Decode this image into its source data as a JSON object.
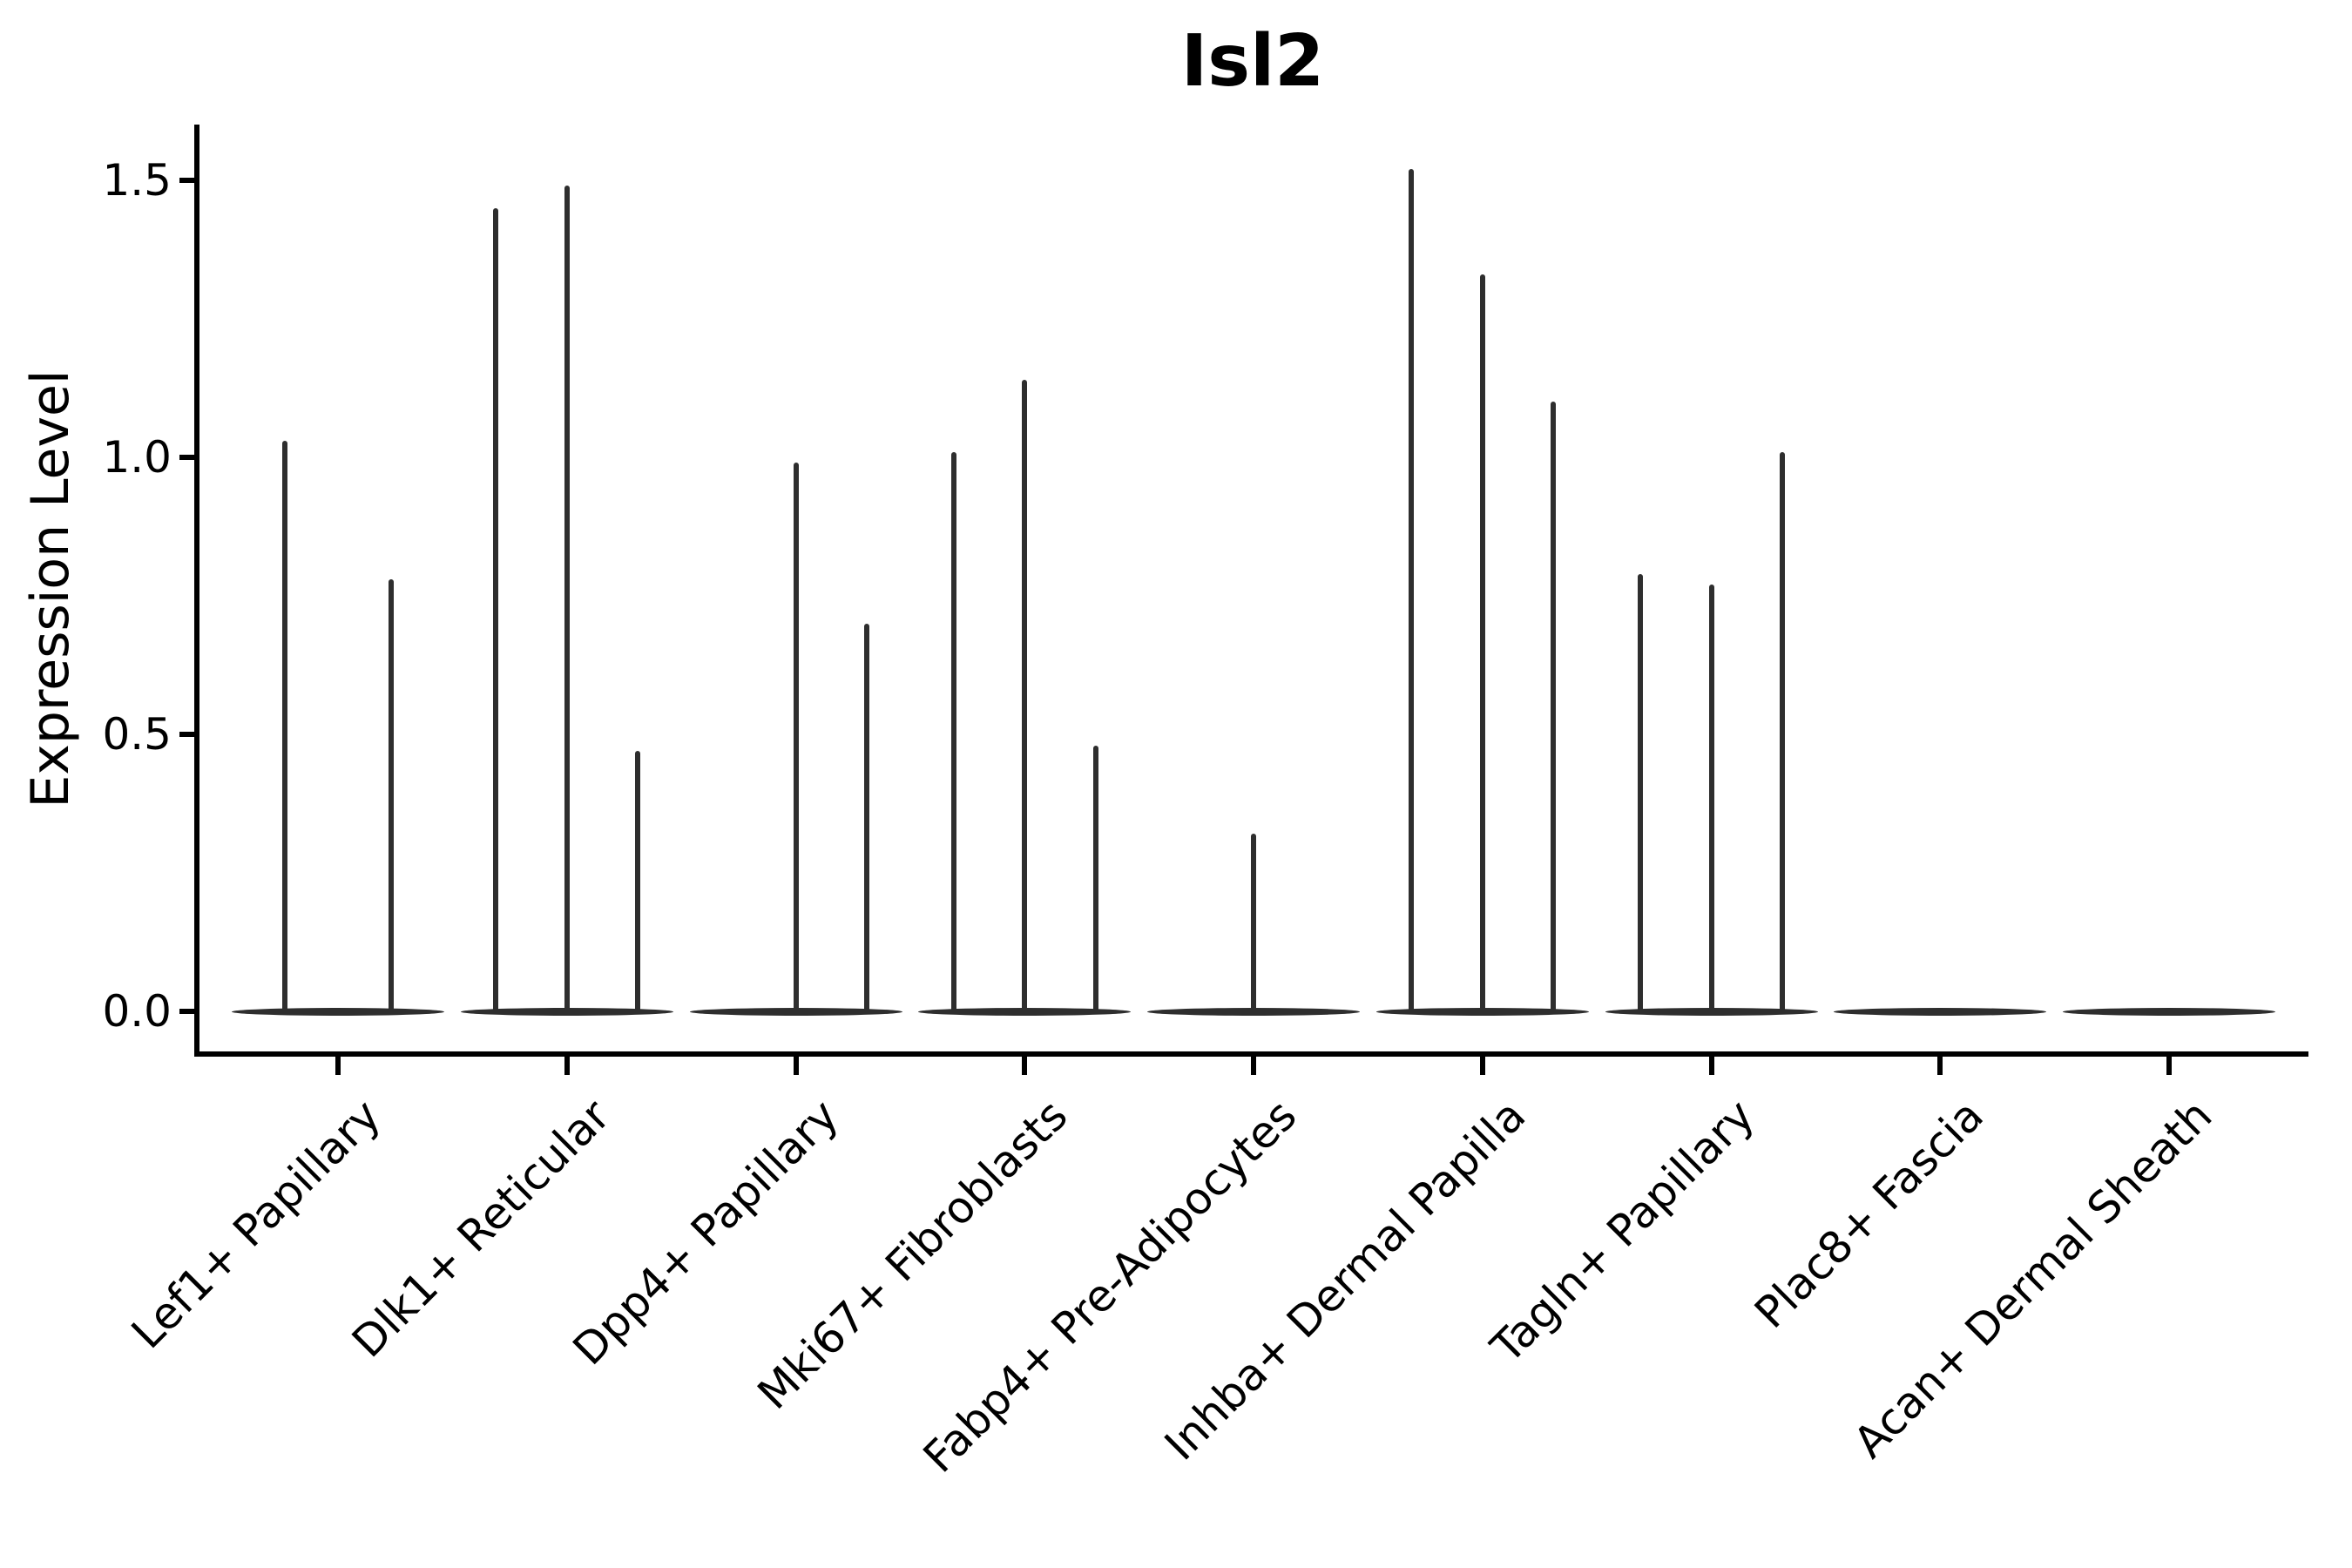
{
  "chart_data": {
    "type": "violin",
    "title": "Isl2",
    "ylabel": "Expression Level",
    "xlabel": "",
    "grid": false,
    "legend": false,
    "background_color": "#ffffff",
    "axis_color": "#000000",
    "violin_color": "#2e2e2e",
    "ylim": [
      -0.08,
      1.6
    ],
    "yticks": [
      {
        "value": 0.0,
        "label": "0.0"
      },
      {
        "value": 0.5,
        "label": "0.5"
      },
      {
        "value": 1.0,
        "label": "1.0"
      },
      {
        "value": 1.5,
        "label": "1.5"
      }
    ],
    "description": "Violin plot of Isl2 expression; each category shows flat zero-density violins with thin spikes rising to the maximum expression value. Spike offset is the horizontal position of each violin center as a fraction of category width.",
    "categories": [
      {
        "label": "Lef1+ Papillary",
        "spikes": [
          {
            "offset": -0.25,
            "peak": 1.03
          },
          {
            "offset": 0.25,
            "peak": 0.78
          }
        ]
      },
      {
        "label": "Dlk1+ Reticular",
        "spikes": [
          {
            "offset": -0.333,
            "peak": 1.45
          },
          {
            "offset": 0,
            "peak": 1.49
          },
          {
            "offset": 0.333,
            "peak": 0.47
          }
        ]
      },
      {
        "label": "Dpp4+ Papillary",
        "spikes": [
          {
            "offset": 0,
            "peak": 0.99
          },
          {
            "offset": 0.333,
            "peak": 0.7
          }
        ]
      },
      {
        "label": "Mki67+ Fibroblasts",
        "spikes": [
          {
            "offset": -0.333,
            "peak": 1.01
          },
          {
            "offset": 0,
            "peak": 1.14
          },
          {
            "offset": 0.333,
            "peak": 0.48
          }
        ]
      },
      {
        "label": "Fabp4+ Pre-Adipocytes",
        "spikes": [
          {
            "offset": 0,
            "peak": 0.32
          }
        ]
      },
      {
        "label": "Inhba+ Dermal Papilla",
        "spikes": [
          {
            "offset": -0.333,
            "peak": 1.52
          },
          {
            "offset": 0,
            "peak": 1.33
          },
          {
            "offset": 0.333,
            "peak": 1.1
          }
        ]
      },
      {
        "label": "Tagln+ Papillary",
        "spikes": [
          {
            "offset": -0.333,
            "peak": 0.79
          },
          {
            "offset": 0,
            "peak": 0.77
          },
          {
            "offset": 0.333,
            "peak": 1.01
          }
        ]
      },
      {
        "label": "Plac8+ Fascia",
        "spikes": []
      },
      {
        "label": "Acan+ Dermal Sheath",
        "spikes": []
      }
    ]
  }
}
